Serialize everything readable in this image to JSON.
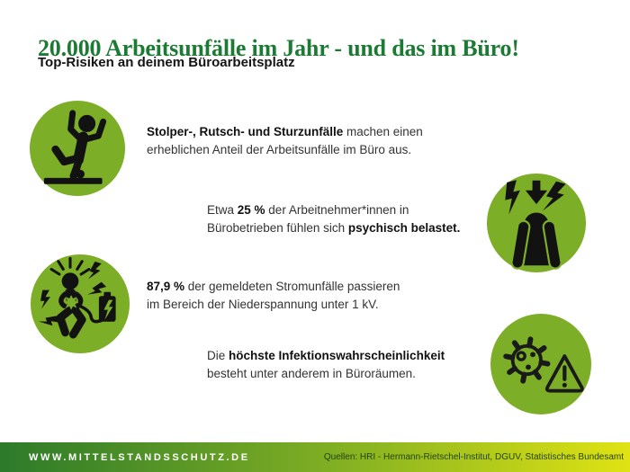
{
  "header": {
    "title": "20.000 Arbeitsunfälle im Jahr - und das im Büro!",
    "subtitle": "Top-Risiken an deinem Büroarbeitsplatz"
  },
  "risks": [
    {
      "icon": "slip-fall-icon",
      "segments": [
        {
          "text": "Stolper-, Rutsch- und Sturzunfälle",
          "bold": true
        },
        {
          "text": " machen einen",
          "bold": false
        },
        {
          "br": true
        },
        {
          "text": "erheblichen Anteil der Arbeitsunfälle im Büro aus.",
          "bold": false
        }
      ]
    },
    {
      "icon": "stress-icon",
      "segments": [
        {
          "text": "Etwa ",
          "bold": false
        },
        {
          "text": "25 %",
          "bold": true
        },
        {
          "text": " der Arbeitnehmer*innen in",
          "bold": false
        },
        {
          "br": true
        },
        {
          "text": "Bürobetrieben fühlen sich ",
          "bold": false
        },
        {
          "text": "psychisch belastet.",
          "bold": true
        }
      ]
    },
    {
      "icon": "electric-shock-icon",
      "segments": [
        {
          "text": "87,9 %",
          "bold": true
        },
        {
          "text": " der gemeldeten Stromunfälle passieren",
          "bold": false
        },
        {
          "br": true
        },
        {
          "text": "im Bereich der Niederspannung unter 1 kV.",
          "bold": false
        }
      ]
    },
    {
      "icon": "infection-warning-icon",
      "segments": [
        {
          "text": "Die ",
          "bold": false
        },
        {
          "text": "höchste Infektionswahrscheinlichkeit",
          "bold": true
        },
        {
          "br": true
        },
        {
          "text": "besteht unter anderem in Büroräumen.",
          "bold": false
        }
      ]
    }
  ],
  "footer": {
    "website": "WWW.MITTELSTANDSSCHUTZ.DE",
    "sources": "Quellen: HRI - Hermann-Rietschel-Institut, DGUV, Statistisches Bundesamt"
  },
  "colors": {
    "circle_green": "#7dae27",
    "title_green": "#1d7a34",
    "footer_gradient_left": "#2c7a2a",
    "footer_gradient_mid": "#7fae23",
    "footer_gradient_right": "#e0e313"
  }
}
